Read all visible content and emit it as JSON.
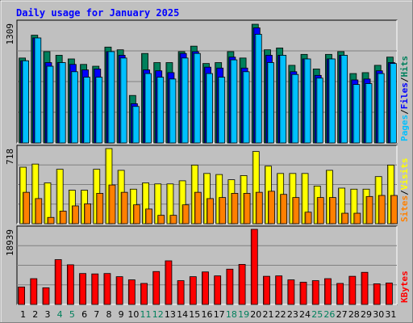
{
  "chart_data": {
    "type": "bar",
    "title": "Daily usage for January 2025",
    "days": [
      "1",
      "2",
      "3",
      "4",
      "5",
      "6",
      "7",
      "8",
      "9",
      "10",
      "11",
      "12",
      "13",
      "14",
      "15",
      "16",
      "17",
      "18",
      "19",
      "20",
      "21",
      "22",
      "23",
      "24",
      "25",
      "26",
      "27",
      "28",
      "29",
      "30",
      "31"
    ],
    "weekend_days": [
      4,
      5,
      11,
      12,
      18,
      19,
      25,
      26
    ],
    "panels": [
      {
        "id": "hits",
        "scale_label": "1309",
        "max": 1309,
        "legend": [
          {
            "label": "Pages",
            "color": "#00c0ff"
          },
          {
            "label": "/",
            "color": "#000000"
          },
          {
            "label": "Files",
            "color": "#0000ff"
          },
          {
            "label": "/",
            "color": "#000000"
          },
          {
            "label": "Hits",
            "color": "#00805c"
          }
        ],
        "series": [
          {
            "name": "Hits",
            "color": "#00805c",
            "values": [
              930,
              1180,
              1000,
              960,
              920,
              860,
              840,
              1050,
              1020,
              520,
              980,
              880,
              880,
              1000,
              1060,
              870,
              880,
              1000,
              930,
              1300,
              1020,
              1040,
              850,
              970,
              810,
              970,
              1000,
              760,
              770,
              850,
              940
            ]
          },
          {
            "name": "Files",
            "color": "#0000ff",
            "values": [
              900,
              1150,
              880,
              880,
              860,
              800,
              810,
              1000,
              960,
              430,
              800,
              790,
              770,
              980,
              1000,
              830,
              820,
              940,
              820,
              1260,
              960,
              960,
              780,
              920,
              740,
              920,
              960,
              690,
              700,
              790,
              880
            ]
          },
          {
            "name": "Pages",
            "color": "#00c0ff",
            "values": [
              900,
              1150,
              840,
              880,
              780,
              720,
              720,
              1000,
              930,
              400,
              760,
              720,
              700,
              930,
              980,
              760,
              720,
              910,
              780,
              1190,
              880,
              960,
              750,
              920,
              710,
              920,
              960,
              640,
              650,
              760,
              870
            ]
          }
        ]
      },
      {
        "id": "visits",
        "scale_label": "718",
        "max": 718,
        "legend": [
          {
            "label": "Sites",
            "color": "#ff8000"
          },
          {
            "label": "/",
            "color": "#000000"
          },
          {
            "label": "Visits",
            "color": "#ffff00"
          }
        ],
        "series": [
          {
            "name": "Visits",
            "color": "#ffff00",
            "values": [
              540,
              570,
              390,
              520,
              320,
              320,
              520,
              718,
              510,
              330,
              390,
              380,
              380,
              410,
              560,
              480,
              470,
              420,
              460,
              690,
              550,
              480,
              480,
              480,
              360,
              510,
              340,
              330,
              330,
              450,
              560
            ]
          },
          {
            "name": "Sites",
            "color": "#ff8000",
            "values": [
              300,
              240,
              60,
              120,
              170,
              190,
              290,
              370,
              300,
              180,
              140,
              80,
              80,
              180,
              300,
              240,
              250,
              290,
              290,
              300,
              310,
              280,
              250,
              110,
              250,
              250,
              100,
              100,
              260,
              270,
              270
            ]
          }
        ]
      },
      {
        "id": "kbytes",
        "scale_label": "18939",
        "max": 18939,
        "legend": [
          {
            "label": "KBytes",
            "color": "#ff0000"
          }
        ],
        "series": [
          {
            "name": "KBytes",
            "color": "#ff0000",
            "values": [
              4400,
              6500,
              4200,
              11300,
              10000,
              7800,
              7700,
              7800,
              7000,
              6200,
              5300,
              8300,
              11000,
              6000,
              7000,
              8200,
              7200,
              8900,
              10100,
              18939,
              7100,
              7200,
              6200,
              5600,
              6000,
              6500,
              5300,
              7100,
              8100,
              5200,
              5400
            ]
          }
        ]
      }
    ]
  }
}
